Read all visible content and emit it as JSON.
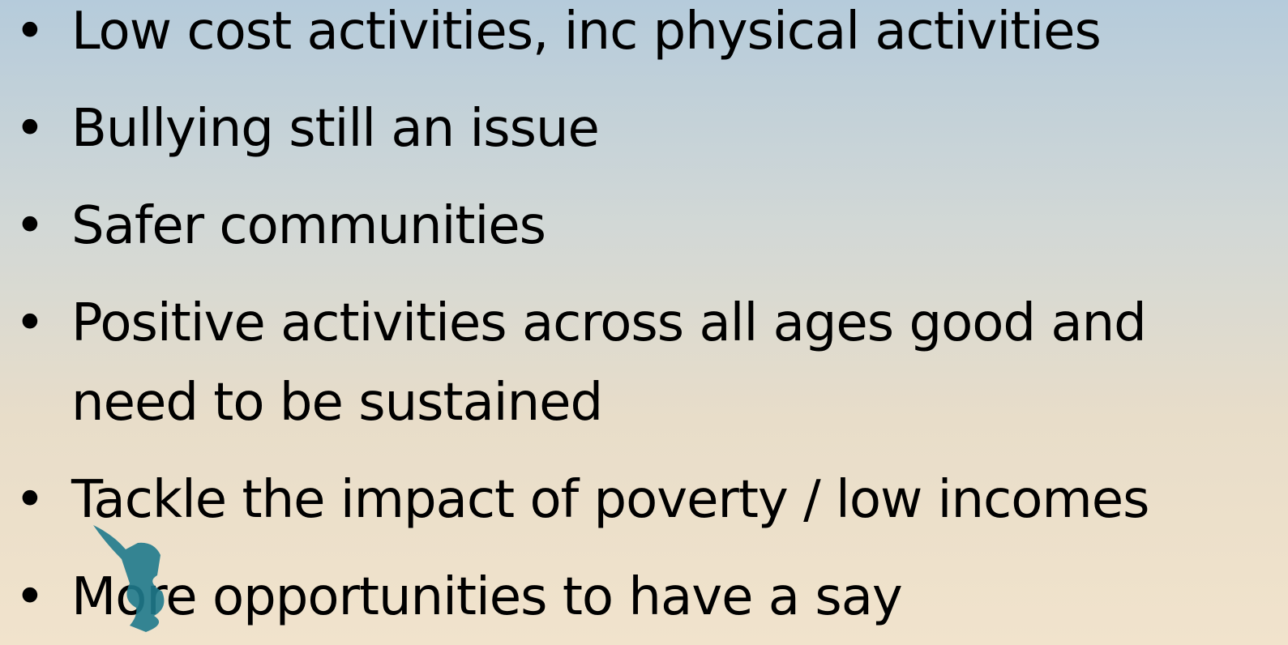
{
  "bullets": [
    "Low cost activities, inc physical activities",
    "Bullying still an issue",
    "Safer communities",
    "Positive activities across all ages good and need to be sustained",
    "Tackle the impact of poverty / low incomes",
    "More opportunities to have a say"
  ]
}
